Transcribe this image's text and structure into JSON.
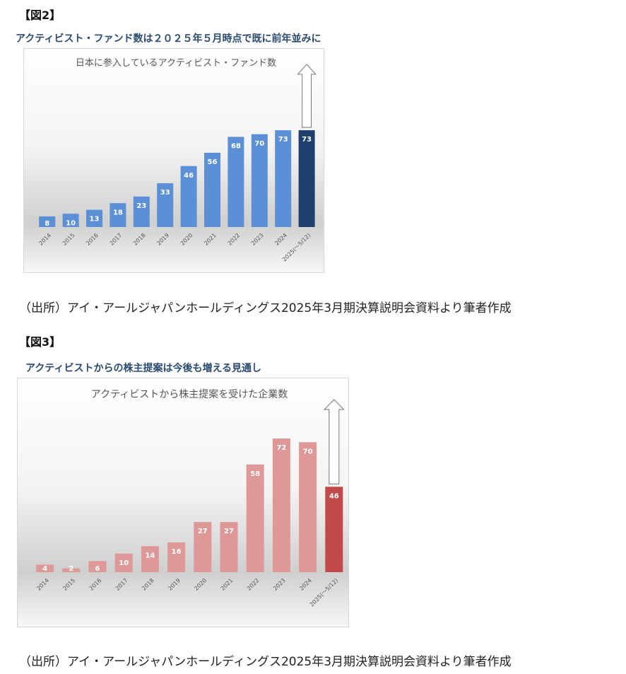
{
  "figures": [
    {
      "label": "【図2】",
      "caption": "アクティビスト・ファンド数は２０２５年５月時点で既に前年並みに",
      "source": "（出所）アイ・アールジャパンホールディングス2025年3月期決算説明会資料より筆者作成"
    },
    {
      "label": "【図3】",
      "caption": "アクティビストからの株主提案は今後も増える見通し",
      "source": "（出所）アイ・アールジャパンホールディングス2025年3月期決算説明会資料より筆者作成"
    }
  ],
  "chart_data": [
    {
      "type": "bar",
      "title": "日本に参入しているアクティビスト・ファンド数",
      "categories": [
        "2014",
        "2015",
        "2016",
        "2017",
        "2018",
        "2019",
        "2020",
        "2021",
        "2022",
        "2023",
        "2024",
        "2025(～5/12)"
      ],
      "values": [
        8,
        10,
        13,
        18,
        23,
        33,
        46,
        56,
        68,
        70,
        73,
        73
      ],
      "ylim": [
        0,
        80
      ],
      "grid": false,
      "legend": "none",
      "bar_color": "#5b8fd6",
      "highlight_color": "#1f3f6e",
      "highlight_index": 11,
      "arrow_up_on_last": true
    },
    {
      "type": "bar",
      "title": "アクティビストから株主提案を受けた企業数",
      "categories": [
        "2014",
        "2015",
        "2016",
        "2017",
        "2018",
        "2019",
        "2020",
        "2021",
        "2022",
        "2023",
        "2024",
        "2025(～5/12)"
      ],
      "values": [
        4,
        2,
        6,
        10,
        14,
        16,
        27,
        27,
        58,
        72,
        70,
        46
      ],
      "ylim": [
        0,
        80
      ],
      "grid": false,
      "legend": "none",
      "bar_color": "#de9898",
      "highlight_color": "#c0494a",
      "highlight_index": 11,
      "arrow_up_on_last": true
    }
  ]
}
